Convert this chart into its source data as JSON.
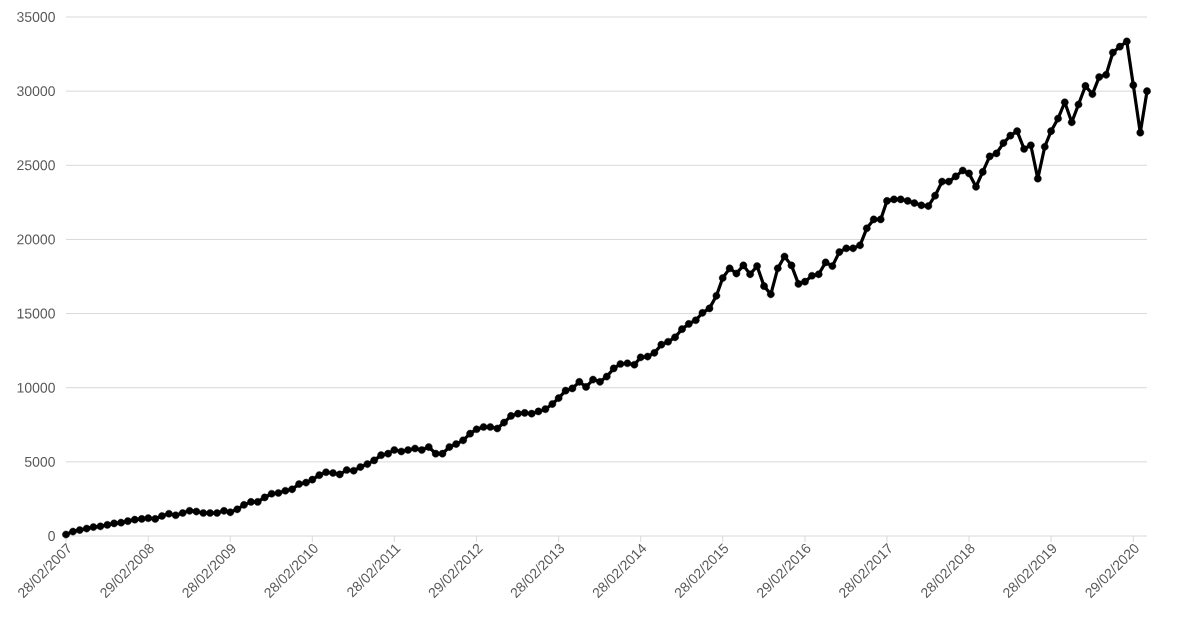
{
  "chart_data": {
    "type": "line",
    "x": [
      "2007-02-28",
      "2007-03-31",
      "2007-04-30",
      "2007-05-31",
      "2007-06-30",
      "2007-07-31",
      "2007-08-31",
      "2007-09-30",
      "2007-10-31",
      "2007-11-30",
      "2007-12-31",
      "2008-01-31",
      "2008-02-29",
      "2008-03-31",
      "2008-04-30",
      "2008-05-31",
      "2008-06-30",
      "2008-07-31",
      "2008-08-31",
      "2008-09-30",
      "2008-10-31",
      "2008-11-30",
      "2008-12-31",
      "2009-01-31",
      "2009-02-28",
      "2009-03-31",
      "2009-04-30",
      "2009-05-31",
      "2009-06-30",
      "2009-07-31",
      "2009-08-31",
      "2009-09-30",
      "2009-10-31",
      "2009-11-30",
      "2009-12-31",
      "2010-01-31",
      "2010-02-28",
      "2010-03-31",
      "2010-04-30",
      "2010-05-31",
      "2010-06-30",
      "2010-07-31",
      "2010-08-31",
      "2010-09-30",
      "2010-10-31",
      "2010-11-30",
      "2010-12-31",
      "2011-01-31",
      "2011-02-28",
      "2011-03-31",
      "2011-04-30",
      "2011-05-31",
      "2011-06-30",
      "2011-07-31",
      "2011-08-31",
      "2011-09-30",
      "2011-10-31",
      "2011-11-30",
      "2011-12-31",
      "2012-01-31",
      "2012-02-29",
      "2012-03-31",
      "2012-04-30",
      "2012-05-31",
      "2012-06-30",
      "2012-07-31",
      "2012-08-31",
      "2012-09-30",
      "2012-10-31",
      "2012-11-30",
      "2012-12-31",
      "2013-01-31",
      "2013-02-28",
      "2013-03-31",
      "2013-04-30",
      "2013-05-31",
      "2013-06-30",
      "2013-07-31",
      "2013-08-31",
      "2013-09-30",
      "2013-10-31",
      "2013-11-30",
      "2013-12-31",
      "2014-01-31",
      "2014-02-28",
      "2014-03-31",
      "2014-04-30",
      "2014-05-31",
      "2014-06-30",
      "2014-07-31",
      "2014-08-31",
      "2014-09-30",
      "2014-10-31",
      "2014-11-30",
      "2014-12-31",
      "2015-01-31",
      "2015-02-28",
      "2015-03-31",
      "2015-04-30",
      "2015-05-31",
      "2015-06-30",
      "2015-07-31",
      "2015-08-31",
      "2015-09-30",
      "2015-10-31",
      "2015-11-30",
      "2015-12-31",
      "2016-01-31",
      "2016-02-29",
      "2016-03-31",
      "2016-04-30",
      "2016-05-31",
      "2016-06-30",
      "2016-07-31",
      "2016-08-31",
      "2016-09-30",
      "2016-10-31",
      "2016-11-30",
      "2016-12-31",
      "2017-01-31",
      "2017-02-28",
      "2017-03-31",
      "2017-04-30",
      "2017-05-31",
      "2017-06-30",
      "2017-07-31",
      "2017-08-31",
      "2017-09-30",
      "2017-10-31",
      "2017-11-30",
      "2017-12-31",
      "2018-01-31",
      "2018-02-28",
      "2018-03-31",
      "2018-04-30",
      "2018-05-31",
      "2018-06-30",
      "2018-07-31",
      "2018-08-31",
      "2018-09-30",
      "2018-10-31",
      "2018-11-30",
      "2018-12-31",
      "2019-01-31",
      "2019-02-28",
      "2019-03-31",
      "2019-04-30",
      "2019-05-31",
      "2019-06-30",
      "2019-07-31",
      "2019-08-31",
      "2019-09-30",
      "2019-10-31",
      "2019-11-30",
      "2019-12-31",
      "2020-01-31",
      "2020-02-29",
      "2020-03-31",
      "2020-04-30"
    ],
    "series": [
      {
        "color": "#000000",
        "values": [
          100,
          300,
          400,
          500,
          600,
          650,
          750,
          850,
          900,
          1000,
          1100,
          1150,
          1200,
          1150,
          1350,
          1500,
          1400,
          1550,
          1700,
          1650,
          1550,
          1550,
          1550,
          1700,
          1600,
          1800,
          2100,
          2300,
          2300,
          2600,
          2850,
          2900,
          3050,
          3150,
          3500,
          3600,
          3800,
          4100,
          4300,
          4250,
          4150,
          4450,
          4400,
          4650,
          4850,
          5100,
          5450,
          5550,
          5800,
          5700,
          5800,
          5900,
          5800,
          6000,
          5550,
          5550,
          6000,
          6200,
          6450,
          6900,
          7200,
          7350,
          7350,
          7250,
          7650,
          8100,
          8250,
          8300,
          8250,
          8400,
          8550,
          8900,
          9300,
          9800,
          9950,
          10400,
          10050,
          10550,
          10400,
          10750,
          11300,
          11600,
          11650,
          11550,
          12050,
          12100,
          12350,
          12900,
          13100,
          13400,
          13950,
          14300,
          14550,
          15050,
          15350,
          16200,
          17400,
          18050,
          17700,
          18250,
          17650,
          18200,
          16850,
          16300,
          18050,
          18850,
          18250,
          17000,
          17150,
          17550,
          17650,
          18450,
          18200,
          19150,
          19400,
          19400,
          19600,
          20750,
          21350,
          21350,
          22600,
          22700,
          22700,
          22600,
          22450,
          22300,
          22250,
          22950,
          23900,
          23900,
          24250,
          24650,
          24450,
          23550,
          24550,
          25600,
          25800,
          26500,
          27000,
          27300,
          26100,
          26350,
          24100,
          26250,
          27300,
          28150,
          29250,
          27900,
          29100,
          30350,
          29800,
          30950,
          31100,
          32600,
          33000,
          33350,
          30400,
          27200,
          30000
        ]
      }
    ],
    "xlim": [
      "2007-02-28",
      "2020-04-30"
    ],
    "xticks": [
      {
        "value": "2007-02-28",
        "label": "28/02/2007"
      },
      {
        "value": "2008-02-29",
        "label": "29/02/2008"
      },
      {
        "value": "2009-02-28",
        "label": "28/02/2009"
      },
      {
        "value": "2010-02-28",
        "label": "28/02/2010"
      },
      {
        "value": "2011-02-28",
        "label": "28/02/2011"
      },
      {
        "value": "2012-02-29",
        "label": "29/02/2012"
      },
      {
        "value": "2013-02-28",
        "label": "28/02/2013"
      },
      {
        "value": "2014-02-28",
        "label": "28/02/2014"
      },
      {
        "value": "2015-02-28",
        "label": "28/02/2015"
      },
      {
        "value": "2016-02-29",
        "label": "29/02/2016"
      },
      {
        "value": "2017-02-28",
        "label": "28/02/2017"
      },
      {
        "value": "2018-02-28",
        "label": "28/02/2018"
      },
      {
        "value": "2019-02-28",
        "label": "28/02/2019"
      },
      {
        "value": "2020-02-29",
        "label": "29/02/2020"
      }
    ],
    "ylim": [
      0,
      35000
    ],
    "yticks": [
      0,
      5000,
      10000,
      15000,
      20000,
      25000,
      30000,
      35000
    ],
    "grid": "y",
    "marker": "circle",
    "line_style": "solid"
  }
}
